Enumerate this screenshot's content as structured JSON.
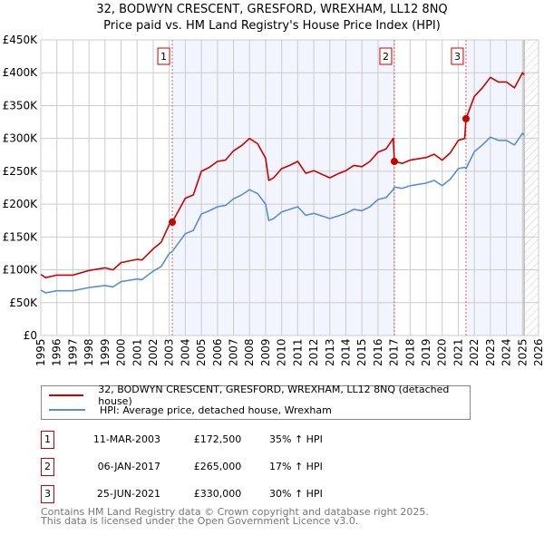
{
  "chart_data": {
    "type": "line",
    "title": "32, BODWYN CRESCENT, GRESFORD, WREXHAM, LL12 8NQ",
    "subtitle": "Price paid vs. HM Land Registry's House Price Index (HPI)",
    "xlim": [
      1995,
      2026
    ],
    "ylim": [
      0,
      450000
    ],
    "x_ticks": [
      "1995",
      "1996",
      "1997",
      "1998",
      "1999",
      "2000",
      "2001",
      "2002",
      "2003",
      "2004",
      "2005",
      "2006",
      "2007",
      "2008",
      "2009",
      "2010",
      "2011",
      "2012",
      "2013",
      "2014",
      "2015",
      "2016",
      "2017",
      "2018",
      "2019",
      "2020",
      "2021",
      "2022",
      "2023",
      "2024",
      "2025",
      "2026"
    ],
    "y_ticks": [
      {
        "v": 0,
        "l": "£0"
      },
      {
        "v": 50000,
        "l": "£50K"
      },
      {
        "v": 100000,
        "l": "£100K"
      },
      {
        "v": 150000,
        "l": "£150K"
      },
      {
        "v": 200000,
        "l": "£200K"
      },
      {
        "v": 250000,
        "l": "£250K"
      },
      {
        "v": 300000,
        "l": "£300K"
      },
      {
        "v": 350000,
        "l": "£350K"
      },
      {
        "v": 400000,
        "l": "£400K"
      },
      {
        "v": 450000,
        "l": "£450K"
      }
    ],
    "grid": true,
    "data_end": 2025.1,
    "x": [
      1995,
      1995.3,
      1996,
      1997,
      1998,
      1999,
      1999.5,
      2000,
      2001,
      2001.3,
      2002,
      2002.5,
      2003,
      2003.19,
      2004,
      2004.5,
      2005,
      2005.5,
      2006,
      2006.5,
      2007,
      2007.5,
      2008,
      2008.5,
      2009,
      2009.2,
      2009.5,
      2010,
      2010.5,
      2011,
      2011.5,
      2012,
      2013,
      2013.5,
      2014,
      2014.5,
      2015,
      2015.5,
      2016,
      2016.5,
      2016.95,
      2017.02,
      2017.5,
      2018,
      2019,
      2019.5,
      2020,
      2020.5,
      2021,
      2021.4,
      2021.48,
      2022,
      2022.5,
      2023,
      2023.5,
      2024,
      2024.5,
      2025,
      2025.1
    ],
    "series": [
      {
        "name": "32, BODWYN CRESCENT, GRESFORD, WREXHAM, LL12 8NQ (detached house)",
        "color": "#cc0000",
        "values": [
          93,
          88,
          92,
          92,
          99,
          103,
          100,
          111,
          116,
          115,
          132,
          142,
          169,
          172.5,
          209,
          214,
          250,
          256,
          265,
          267,
          281,
          289,
          300,
          292,
          270,
          236,
          240,
          254,
          259,
          265,
          247,
          251,
          240,
          246,
          251,
          259,
          257,
          265,
          279,
          284,
          300,
          265,
          262,
          267,
          271,
          276,
          267,
          278,
          297,
          300,
          330,
          364,
          377,
          393,
          386,
          386,
          377,
          400,
          397
        ]
      },
      {
        "name": "HPI: Average price, detached house, Wrexham",
        "color": "#5b8fd0",
        "values": [
          69,
          65,
          68,
          68,
          73,
          76,
          74,
          82,
          86,
          85,
          98,
          105,
          125,
          128,
          155,
          160,
          185,
          190,
          196,
          198,
          208,
          214,
          222,
          216,
          200,
          175,
          178,
          188,
          192,
          196,
          183,
          186,
          178,
          182,
          186,
          192,
          190,
          196,
          207,
          210,
          222,
          226,
          224,
          228,
          232,
          236,
          228,
          238,
          254,
          256,
          254,
          280,
          290,
          302,
          297,
          297,
          290,
          308,
          305
        ]
      }
    ],
    "value_unit": "£ thousands",
    "legend_position": "below",
    "annotations": [
      {
        "label": "1",
        "x": 2003.19,
        "price": 172500,
        "date": "11-MAR-2003",
        "price_label": "£172,500",
        "hpi": "35% ↑ HPI"
      },
      {
        "label": "2",
        "x": 2017.02,
        "price": 265000,
        "date": "06-JAN-2017",
        "price_label": "£265,000",
        "hpi": "17% ↑ HPI"
      },
      {
        "label": "3",
        "x": 2021.48,
        "price": 330000,
        "date": "25-JUN-2021",
        "price_label": "£330,000",
        "hpi": "30% ↑ HPI"
      }
    ]
  },
  "footer": {
    "line1": "Contains HM Land Registry data © Crown copyright and database right 2025.",
    "line2": "This data is licensed under the Open Government Licence v3.0."
  }
}
